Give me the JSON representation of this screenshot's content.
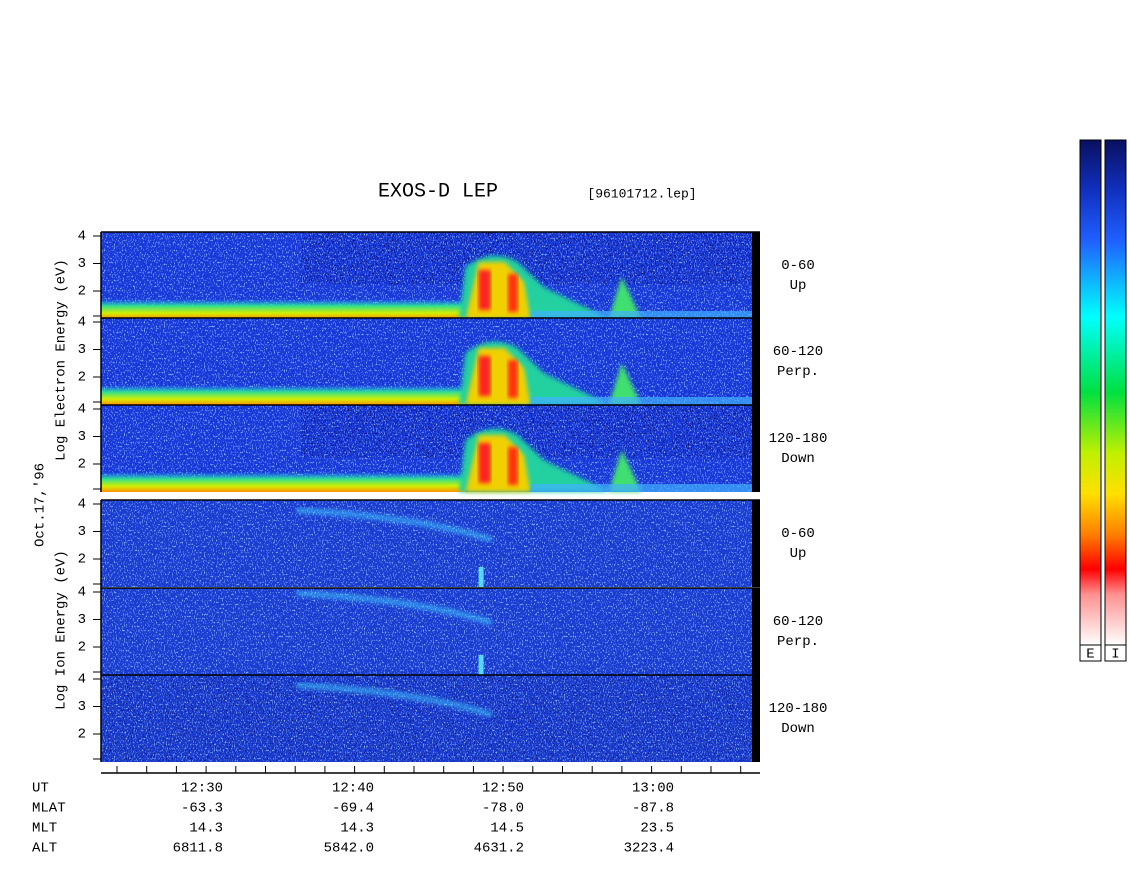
{
  "title": "EXOS-D LEP",
  "file": "[96101712.lep]",
  "date_label": "Oct.17,'96",
  "electron": {
    "axis_label": "Log  Electron  Energy (eV)",
    "panels": [
      {
        "angle": "0-60",
        "direction": "Up",
        "yticks": [
          "4",
          "3",
          "2"
        ]
      },
      {
        "angle": "60-120",
        "direction": "Perp.",
        "yticks": [
          "4",
          "3",
          "2"
        ]
      },
      {
        "angle": "120-180",
        "direction": "Down",
        "yticks": [
          "4",
          "3",
          "2"
        ]
      }
    ]
  },
  "ion": {
    "axis_label": "Log  Ion  Energy (eV)",
    "panels": [
      {
        "angle": "0-60",
        "direction": "Up",
        "yticks": [
          "4",
          "3",
          "2"
        ]
      },
      {
        "angle": "60-120",
        "direction": "Perp.",
        "yticks": [
          "4",
          "3",
          "2"
        ]
      },
      {
        "angle": "120-180",
        "direction": "Down",
        "yticks": [
          "4",
          "3",
          "2"
        ]
      }
    ]
  },
  "table": {
    "row_labels": [
      "UT",
      "MLAT",
      "MLT",
      "ALT"
    ],
    "columns": [
      [
        "12:30",
        "-63.3",
        "14.3",
        "6811.8"
      ],
      [
        "12:40",
        "-69.4",
        "14.3",
        "5842.0"
      ],
      [
        "12:50",
        "-78.0",
        "14.5",
        "4631.2"
      ],
      [
        "13:00",
        "-87.8",
        "23.5",
        "3223.4"
      ]
    ]
  },
  "colorbars": [
    "E",
    "I"
  ]
}
